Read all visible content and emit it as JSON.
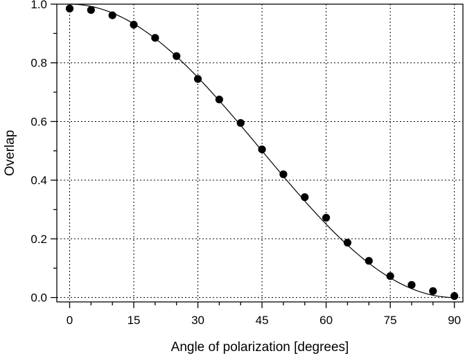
{
  "chart_data": {
    "type": "scatter",
    "title": "",
    "xlabel": "Angle of polarization [degrees]",
    "ylabel": "Overlap",
    "xlim": [
      -3,
      92
    ],
    "ylim": [
      -0.015,
      1.0
    ],
    "xticks": [
      0,
      15,
      30,
      45,
      60,
      75,
      90
    ],
    "xtick_labels": [
      "0",
      "15",
      "30",
      "45",
      "60",
      "75",
      "90"
    ],
    "yticks": [
      0.0,
      0.2,
      0.4,
      0.6,
      0.8,
      1.0
    ],
    "ytick_labels": [
      "0.0",
      "0.2",
      "0.4",
      "0.6",
      "0.8",
      "1.0"
    ],
    "x_minor_step": 5,
    "y_minor_step": 0.1,
    "grid": true,
    "legend": false,
    "series": [
      {
        "kind": "scatter",
        "marker": "filled-circle",
        "color": "#000000",
        "x": [
          0,
          5,
          10,
          15,
          20,
          25,
          30,
          35,
          40,
          45,
          50,
          55,
          60,
          65,
          70,
          75,
          80,
          85,
          90
        ],
        "y": [
          0.985,
          0.98,
          0.962,
          0.93,
          0.885,
          0.823,
          0.745,
          0.675,
          0.595,
          0.505,
          0.42,
          0.342,
          0.272,
          0.187,
          0.125,
          0.073,
          0.043,
          0.022,
          0.005
        ]
      },
      {
        "kind": "line",
        "function": "cos^2(x)",
        "color": "#000000",
        "x_range": [
          0,
          90
        ]
      }
    ]
  }
}
